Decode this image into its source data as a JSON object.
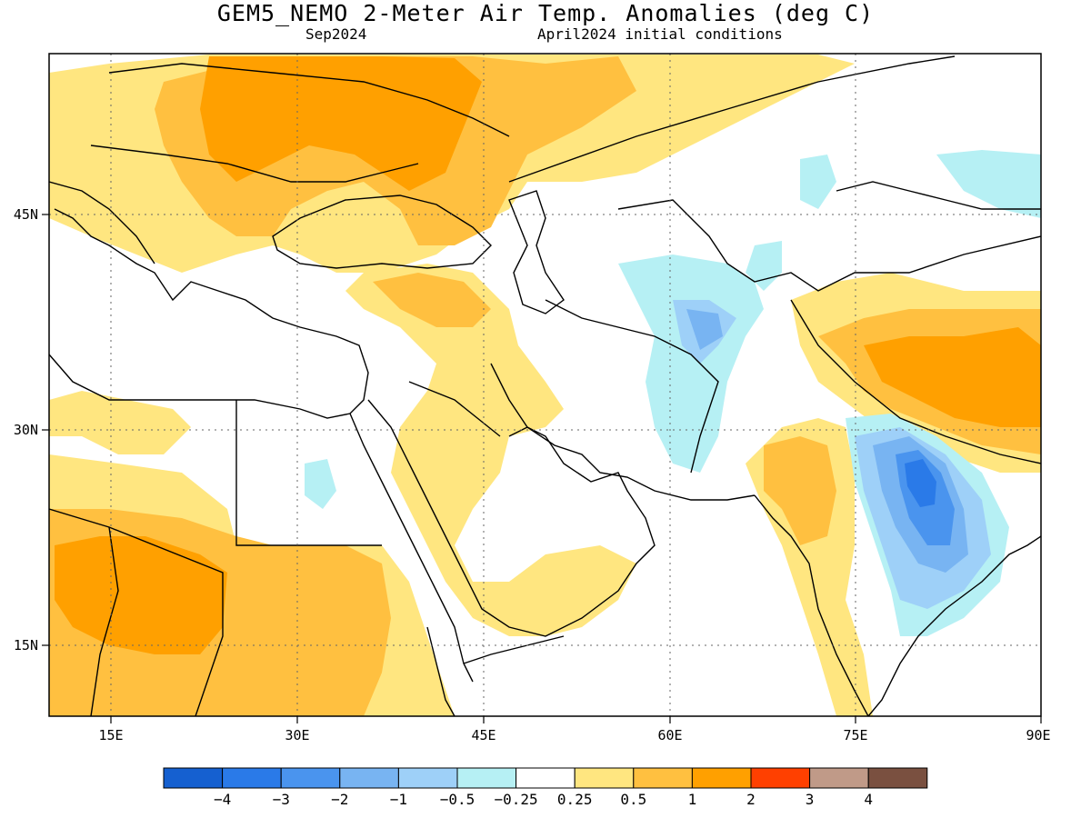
{
  "title": "GEM5_NEMO 2-Meter Air Temp. Anomalies (deg C)",
  "subtitle_left": "Sep2024",
  "subtitle_right": "April2024 initial conditions",
  "map": {
    "lon_range": [
      10,
      90
    ],
    "lat_range": [
      10,
      55
    ],
    "lon_ticks": [
      "15E",
      "30E",
      "45E",
      "60E",
      "75E",
      "90E"
    ],
    "lat_ticks": [
      "45N",
      "30N",
      "15N"
    ],
    "gridlines": "dotted"
  },
  "colorbar": {
    "colors": [
      "#1560d0",
      "#2a7ae8",
      "#4a94ee",
      "#78b4f2",
      "#9ed0f8",
      "#b6f0f4",
      "#ffffff",
      "#ffe680",
      "#ffc040",
      "#ffa000",
      "#ff4000",
      "#c09a88",
      "#7a5040"
    ],
    "labels": [
      "−4",
      "−3",
      "−2",
      "−1",
      "−0.5",
      "−0.25",
      "0.25",
      "0.5",
      "1",
      "2",
      "3",
      "4"
    ]
  }
}
